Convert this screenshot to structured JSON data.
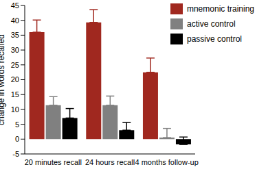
{
  "chart_data": {
    "type": "bar",
    "y_label": "change in words recalled",
    "categories": [
      "20 minutes recall",
      "24 hours recall",
      "4 months follow-up"
    ],
    "series": [
      {
        "name": "mnemonic training",
        "color": "#a0281f",
        "values": [
          36,
          39.3,
          22.5
        ],
        "errors": [
          4.1,
          4.3,
          4.8
        ]
      },
      {
        "name": "active control",
        "color": "#808080",
        "values": [
          11.4,
          11.4,
          0.5
        ],
        "errors": [
          2.9,
          3.1,
          3.1
        ]
      },
      {
        "name": "passive control",
        "color": "#000000",
        "values": [
          7.1,
          3.0,
          -1.8
        ],
        "errors": [
          3.2,
          2.6,
          2.5
        ]
      }
    ],
    "ylim": [
      -5,
      45
    ],
    "yticks": [
      -5,
      0,
      5,
      10,
      15,
      20,
      25,
      30,
      35,
      40,
      45
    ],
    "grid": false,
    "legend": "top-right"
  }
}
